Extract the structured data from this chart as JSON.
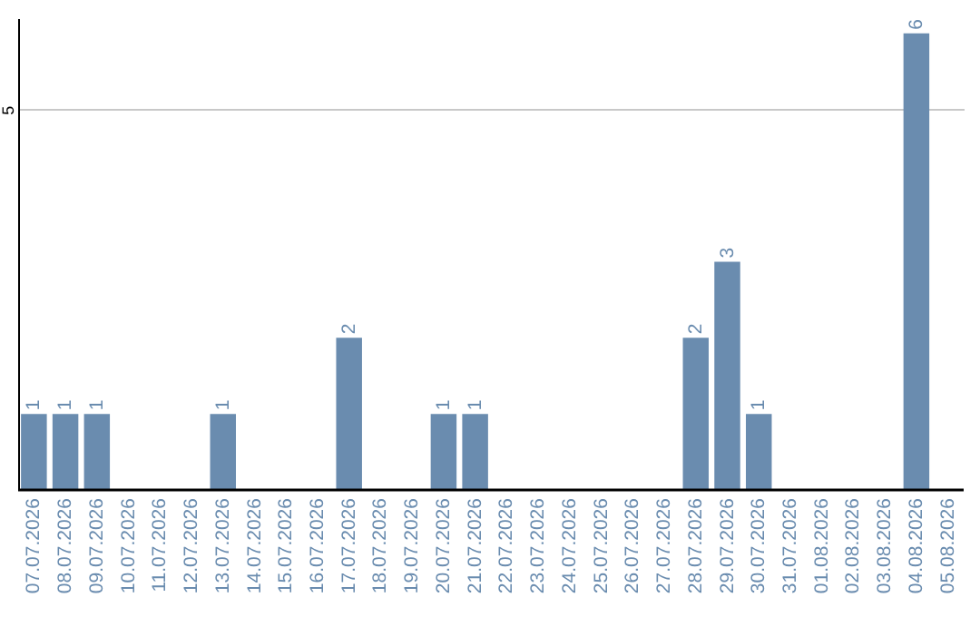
{
  "chart_data": {
    "type": "bar",
    "categories": [
      "07.07.2026",
      "08.07.2026",
      "09.07.2026",
      "10.07.2026",
      "11.07.2026",
      "12.07.2026",
      "13.07.2026",
      "14.07.2026",
      "15.07.2026",
      "16.07.2026",
      "17.07.2026",
      "18.07.2026",
      "19.07.2026",
      "20.07.2026",
      "21.07.2026",
      "22.07.2026",
      "23.07.2026",
      "24.07.2026",
      "25.07.2026",
      "26.07.2026",
      "27.07.2026",
      "28.07.2026",
      "29.07.2026",
      "30.07.2026",
      "31.07.2026",
      "01.08.2026",
      "02.08.2026",
      "03.08.2026",
      "04.08.2026",
      "05.08.2026"
    ],
    "values": [
      1,
      1,
      1,
      0,
      0,
      0,
      1,
      0,
      0,
      0,
      2,
      0,
      0,
      1,
      1,
      0,
      0,
      0,
      0,
      0,
      0,
      2,
      3,
      1,
      0,
      0,
      0,
      0,
      6,
      0
    ],
    "value_labels": [
      "1",
      "1",
      "1",
      null,
      null,
      null,
      "1",
      null,
      null,
      null,
      "2",
      null,
      null,
      "1",
      "1",
      null,
      null,
      null,
      null,
      null,
      null,
      "2",
      "3",
      "1",
      null,
      null,
      null,
      null,
      "6",
      null
    ],
    "color": "#6a8caf",
    "ylim": [
      0,
      6.2
    ],
    "yticks": [
      5
    ],
    "grid": "y"
  }
}
